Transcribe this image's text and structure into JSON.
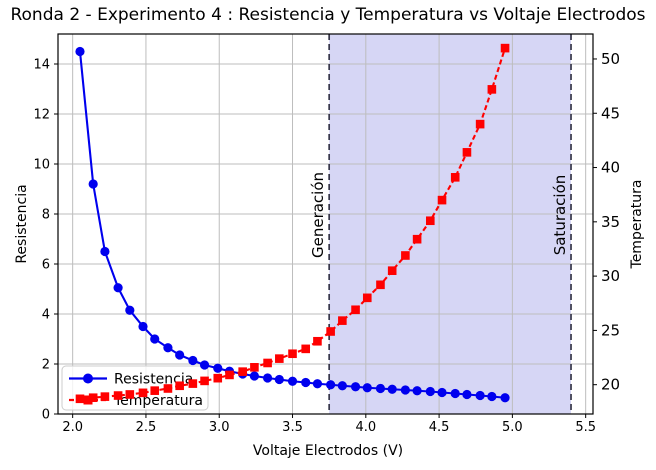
{
  "chart_data": {
    "type": "line",
    "title": "Ronda 2 - Experimento 4 : Resistencia y Temperatura vs Voltaje Electrodos",
    "xlabel": "Voltaje Electrodos (V)",
    "ylabel_left": "Resistencia",
    "ylabel_right": "Temperatura",
    "xlim": [
      1.9,
      5.55
    ],
    "ylim_left": [
      0,
      15.2
    ],
    "ylim_right": [
      17.3,
      52.3
    ],
    "xticks": [
      "2.0",
      "2.5",
      "3.0",
      "3.5",
      "4.0",
      "4.5",
      "5.0",
      "5.5"
    ],
    "xtick_values": [
      2.0,
      2.5,
      3.0,
      3.5,
      4.0,
      4.5,
      5.0,
      5.5
    ],
    "yticks_left": [
      0,
      2,
      4,
      6,
      8,
      10,
      12,
      14
    ],
    "yticks_right": [
      20,
      25,
      30,
      35,
      40,
      45,
      50
    ],
    "grid": true,
    "legend_position": "lower-left",
    "x": [
      2.05,
      2.14,
      2.22,
      2.31,
      2.39,
      2.48,
      2.56,
      2.65,
      2.73,
      2.82,
      2.9,
      2.99,
      3.07,
      3.16,
      3.24,
      3.33,
      3.41,
      3.5,
      3.59,
      3.67,
      3.76,
      3.84,
      3.93,
      4.01,
      4.1,
      4.18,
      4.27,
      4.35,
      4.44,
      4.52,
      4.61,
      4.69,
      4.78,
      4.86,
      4.95
    ],
    "series": [
      {
        "name": "Resistencia",
        "axis": "left",
        "color": "#0000ee",
        "marker": "circle",
        "linestyle": "solid",
        "values": [
          14.5,
          9.2,
          6.5,
          5.05,
          4.15,
          3.5,
          3.0,
          2.65,
          2.36,
          2.14,
          1.96,
          1.83,
          1.71,
          1.6,
          1.52,
          1.44,
          1.38,
          1.31,
          1.26,
          1.21,
          1.17,
          1.13,
          1.09,
          1.05,
          1.02,
          0.99,
          0.96,
          0.93,
          0.9,
          0.86,
          0.82,
          0.78,
          0.74,
          0.7,
          0.65
        ]
      },
      {
        "name": "Temperatura",
        "axis": "right",
        "color": "#ff0000",
        "marker": "square",
        "linestyle": "dashed",
        "values": [
          18.7,
          18.8,
          18.9,
          19.0,
          19.1,
          19.25,
          19.45,
          19.65,
          19.9,
          20.1,
          20.35,
          20.6,
          20.9,
          21.2,
          21.6,
          22.0,
          22.4,
          22.85,
          23.3,
          24.0,
          24.9,
          25.9,
          26.9,
          28.0,
          29.2,
          30.5,
          31.9,
          33.4,
          35.1,
          37.0,
          39.1,
          41.4,
          44.0,
          47.2,
          51.0
        ]
      }
    ],
    "annotations": [
      {
        "label": "Generación",
        "x": 3.75
      },
      {
        "label": "Saturación",
        "x": 5.4
      }
    ],
    "shaded_region": {
      "from": 3.75,
      "to": 5.4,
      "color": "#d6d6f5"
    },
    "colors": {
      "grid": "#bdbdbd",
      "spine": "#000000",
      "vline": "#36364a",
      "legend_border": "#cccccc",
      "text": "#000000"
    }
  }
}
